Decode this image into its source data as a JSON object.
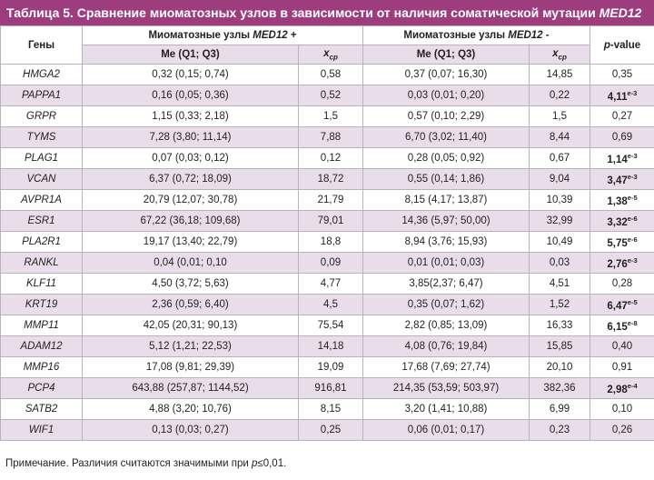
{
  "title": {
    "prefix": "Таблица 5. Сравнение миоматозных узлов в зависимости от наличия соматической мутации ",
    "gene": "MED12"
  },
  "header": {
    "genes": "Гены",
    "group_pos_prefix": "Миоматозные узлы ",
    "group_pos_gene": "MED12",
    "group_pos_suffix": " +",
    "group_neg_prefix": "Миоматозные узлы ",
    "group_neg_gene": "MED12",
    "group_neg_suffix": " -",
    "p_italic": "p",
    "p_rest": "-value",
    "me_label": "Me (Q1; Q3)",
    "x_label": "x",
    "x_sub": "ср"
  },
  "rows": [
    {
      "gene": "HMGA2",
      "pos_me": "0,32 (0,15; 0,74)",
      "pos_x": "0,58",
      "neg_me": "0,37 (0,07; 16,30)",
      "neg_x": "14,85",
      "p": "0,35",
      "p_exp": "",
      "sig": false
    },
    {
      "gene": "PAPPA1",
      "pos_me": "0,16 (0,05; 0,36)",
      "pos_x": "0,52",
      "neg_me": "0,03 (0,01; 0,20)",
      "neg_x": "0,22",
      "p": "4,11",
      "p_exp": "e-3",
      "sig": true
    },
    {
      "gene": "GRPR",
      "pos_me": "1,15 (0,33; 2,18)",
      "pos_x": "1,5",
      "neg_me": "0,57 (0,10; 2,29)",
      "neg_x": "1,5",
      "p": "0,27",
      "p_exp": "",
      "sig": false
    },
    {
      "gene": "TYMS",
      "pos_me": "7,28 (3,80; 11,14)",
      "pos_x": "7,88",
      "neg_me": "6,70 (3,02; 11,40)",
      "neg_x": "8,44",
      "p": "0,69",
      "p_exp": "",
      "sig": false
    },
    {
      "gene": "PLAG1",
      "pos_me": "0,07 (0,03; 0,12)",
      "pos_x": "0,12",
      "neg_me": "0,28 (0,05; 0,92)",
      "neg_x": "0,67",
      "p": "1,14",
      "p_exp": "e-3",
      "sig": true
    },
    {
      "gene": "VCAN",
      "pos_me": "6,37 (0,72; 18,09)",
      "pos_x": "18,72",
      "neg_me": "0,55 (0,14; 1,86)",
      "neg_x": "9,04",
      "p": "3,47",
      "p_exp": "e-3",
      "sig": true
    },
    {
      "gene": "AVPR1A",
      "pos_me": "20,79 (12,07; 30,78)",
      "pos_x": "21,79",
      "neg_me": "8,15 (4,17; 13,87)",
      "neg_x": "10,39",
      "p": "1,38",
      "p_exp": "e-5",
      "sig": true
    },
    {
      "gene": "ESR1",
      "pos_me": "67,22 (36,18; 109,68)",
      "pos_x": "79,01",
      "neg_me": "14,36 (5,97; 50,00)",
      "neg_x": "32,99",
      "p": "3,32",
      "p_exp": "e-6",
      "sig": true
    },
    {
      "gene": "PLA2R1",
      "pos_me": "19,17 (13,40; 22,79)",
      "pos_x": "18,8",
      "neg_me": "8,94 (3,76; 15,93)",
      "neg_x": "10,49",
      "p": "5,75",
      "p_exp": "e-6",
      "sig": true
    },
    {
      "gene": "RANKL",
      "pos_me": "0,04 (0,01; 0,10",
      "pos_x": "0,09",
      "neg_me": "0,01 (0,01; 0,03)",
      "neg_x": "0,03",
      "p": "2,76",
      "p_exp": "e-3",
      "sig": true
    },
    {
      "gene": "KLF11",
      "pos_me": "4,50 (3,72; 5,63)",
      "pos_x": "4,77",
      "neg_me": "3,85(2,37; 6,47)",
      "neg_x": "4,51",
      "p": "0,28",
      "p_exp": "",
      "sig": false
    },
    {
      "gene": "KRT19",
      "pos_me": "2,36 (0,59; 6,40)",
      "pos_x": "4,5",
      "neg_me": "0,35 (0,07; 1,62)",
      "neg_x": "1,52",
      "p": "6,47",
      "p_exp": "e-5",
      "sig": true
    },
    {
      "gene": "MMP11",
      "pos_me": "42,05 (20,31; 90,13)",
      "pos_x": "75,54",
      "neg_me": "2,82 (0,85; 13,09)",
      "neg_x": "16,33",
      "p": "6,15",
      "p_exp": "e-8",
      "sig": true
    },
    {
      "gene": "ADAM12",
      "pos_me": "5,12 (1,21; 22,53)",
      "pos_x": "14,18",
      "neg_me": "4,08 (0,76; 19,84)",
      "neg_x": "15,85",
      "p": "0,40",
      "p_exp": "",
      "sig": false
    },
    {
      "gene": "MMP16",
      "pos_me": "17,08 (9,81; 29,39)",
      "pos_x": "19,09",
      "neg_me": "17,68 (7,69; 27,74)",
      "neg_x": "20,10",
      "p": "0,91",
      "p_exp": "",
      "sig": false
    },
    {
      "gene": "PCP4",
      "pos_me": "643,88 (257,87; 1144,52)",
      "pos_x": "916,81",
      "neg_me": "214,35 (53,59; 503,97)",
      "neg_x": "382,36",
      "p": "2,98",
      "p_exp": "e-4",
      "sig": true
    },
    {
      "gene": "SATB2",
      "pos_me": "4,88 (3,20; 10,76)",
      "pos_x": "8,15",
      "neg_me": "3,20 (1,41; 10,88)",
      "neg_x": "6,99",
      "p": "0,10",
      "p_exp": "",
      "sig": false
    },
    {
      "gene": "WIF1",
      "pos_me": "0,13 (0,03; 0,27)",
      "pos_x": "0,25",
      "neg_me": "0,06 (0,01; 0,17)",
      "neg_x": "0,23",
      "p": "0,26",
      "p_exp": "",
      "sig": false
    }
  ],
  "note": {
    "prefix": "Примечание. Различия считаются значимыми при ",
    "p": "p",
    "suffix": "≤0,01."
  },
  "colors": {
    "title_bg": "#9e3d7e",
    "row_alt_bg": "#e8dde9",
    "border": "#b9b2bc"
  }
}
